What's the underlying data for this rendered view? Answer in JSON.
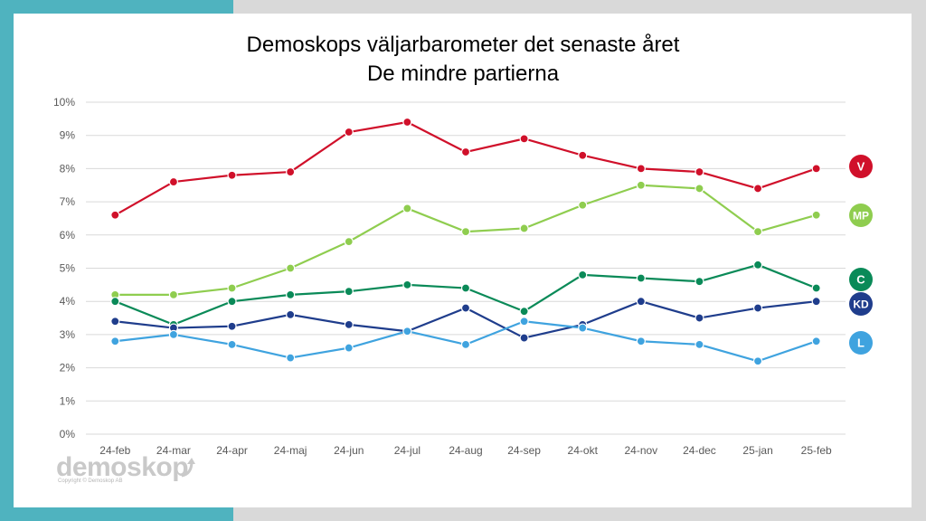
{
  "chart_data": {
    "type": "line",
    "title": "Demoskops väljarbarometer det senaste året",
    "subtitle": "De mindre partierna",
    "xlabel": "",
    "ylabel": "",
    "categories": [
      "24-feb",
      "24-mar",
      "24-apr",
      "24-maj",
      "24-jun",
      "24-jul",
      "24-aug",
      "24-sep",
      "24-okt",
      "24-nov",
      "24-dec",
      "25-jan",
      "25-feb"
    ],
    "ylim": [
      0,
      10
    ],
    "yticks": [
      "0%",
      "1%",
      "2%",
      "3%",
      "4%",
      "5%",
      "6%",
      "7%",
      "8%",
      "9%",
      "10%"
    ],
    "grid": true,
    "legend": "right, end-of-line badges",
    "series": [
      {
        "name": "V",
        "color": "#d0102a",
        "values": [
          6.6,
          7.6,
          7.8,
          7.9,
          9.1,
          9.4,
          8.5,
          8.9,
          8.4,
          8.0,
          7.9,
          7.4,
          8.0
        ]
      },
      {
        "name": "MP",
        "color": "#8fcd4f",
        "values": [
          4.2,
          4.2,
          4.4,
          5.0,
          5.8,
          6.8,
          6.1,
          6.2,
          6.9,
          7.5,
          7.4,
          6.1,
          6.6
        ]
      },
      {
        "name": "C",
        "color": "#0a8a58",
        "values": [
          4.0,
          3.3,
          4.0,
          4.2,
          4.3,
          4.5,
          4.4,
          3.7,
          4.8,
          4.7,
          4.6,
          5.1,
          4.4
        ]
      },
      {
        "name": "KD",
        "color": "#1f3d8c",
        "values": [
          3.4,
          3.2,
          3.25,
          3.6,
          3.3,
          3.1,
          3.8,
          2.9,
          3.3,
          4.0,
          3.5,
          3.8,
          4.0
        ]
      },
      {
        "name": "L",
        "color": "#3fa3df",
        "values": [
          2.8,
          3.0,
          2.7,
          2.3,
          2.6,
          3.1,
          2.7,
          3.4,
          3.2,
          2.8,
          2.7,
          2.2,
          2.8
        ]
      }
    ]
  },
  "logo": {
    "word": "demoskop",
    "copyright": "Copyright © Demoskop AB"
  }
}
